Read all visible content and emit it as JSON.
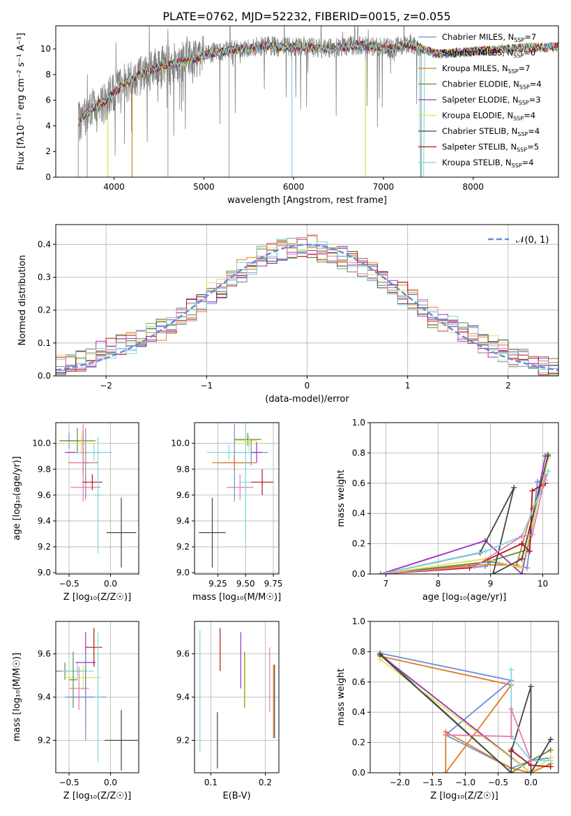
{
  "figure": {
    "title": "PLATE=0762, MJD=52232, FIBERID=0015, z=0.055"
  },
  "colors": {
    "data": "#808080",
    "Chabrier MILES": "#6a8fdc",
    "Salpeter MILES": "#8e8e8e",
    "Kroupa MILES": "#e07b20",
    "Chabrier ELODIE": "#5e8c3a",
    "Salpeter ELODIE": "#9b30b8",
    "Kroupa ELODIE": "#e0e35a",
    "Chabrier STELIB": "#444444",
    "Salpeter STELIB": "#b0141c",
    "Kroupa STELIB": "#7ed8e0",
    "Pink": "#e87ab0",
    "Gauss": "#5b8fd8"
  },
  "chart_data": [
    {
      "type": "line",
      "panel": "spectrum",
      "title": "PLATE=0762, MJD=52232, FIBERID=0015, z=0.055",
      "xlabel": "wavelength [Angstrom, rest frame]",
      "ylabel": "Flux [fλ10⁻¹⁷ erg cm⁻² s⁻¹ A⁻¹]",
      "xlim": [
        3350,
        8950
      ],
      "ylim": [
        0,
        11.8
      ],
      "xticks": [
        4000,
        5000,
        6000,
        7000,
        8000
      ],
      "yticks": [
        0,
        2,
        4,
        6,
        8,
        10
      ],
      "legend_position": "top-right",
      "legend": [
        {
          "name": "Chabrier MILES",
          "nssp": "7"
        },
        {
          "name": "Salpeter MILES",
          "nssp": "6"
        },
        {
          "name": "Kroupa MILES",
          "nssp": "7"
        },
        {
          "name": "Chabrier ELODIE",
          "nssp": "4"
        },
        {
          "name": "Salpeter ELODIE",
          "nssp": "3"
        },
        {
          "name": "Kroupa ELODIE",
          "nssp": "4"
        },
        {
          "name": "Chabrier STELIB",
          "nssp": "4"
        },
        {
          "name": "Salpeter STELIB",
          "nssp": "5"
        },
        {
          "name": "Kroupa STELIB",
          "nssp": "4"
        }
      ],
      "continuum": {
        "wavelength": [
          3600,
          3700,
          3800,
          3900,
          4000,
          4100,
          4200,
          4300,
          4500,
          4700,
          4900,
          5100,
          5300,
          5500,
          5700,
          5900,
          6100,
          6300,
          6500,
          6700,
          6900,
          7100,
          7200,
          7300,
          7400,
          7600,
          7800,
          8000,
          8200,
          8400,
          8600,
          8800,
          8950
        ],
        "flux": [
          4.2,
          5.0,
          5.6,
          5.9,
          6.6,
          7.2,
          7.7,
          8.0,
          8.6,
          8.9,
          9.3,
          9.7,
          9.9,
          10.1,
          10.2,
          10.1,
          10.2,
          10.0,
          10.1,
          10.3,
          10.2,
          10.0,
          10.3,
          10.4,
          10.1,
          9.6,
          9.7,
          9.8,
          9.9,
          10.0,
          10.1,
          10.1,
          10.2
        ]
      },
      "noise_end_wavelength": 7420
    },
    {
      "type": "bar",
      "panel": "residual-histogram",
      "xlabel": "(data-model)/error",
      "ylabel": "Normed distribution",
      "xlim": [
        -2.5,
        2.5
      ],
      "ylim": [
        0,
        0.46
      ],
      "xticks": [
        -2,
        -1,
        0,
        1,
        2
      ],
      "yticks": [
        0.0,
        0.1,
        0.2,
        0.3,
        0.4
      ],
      "bin_edges": [
        -2.5,
        -2.4,
        -2.3,
        -2.2,
        -2.1,
        -2.0,
        -1.9,
        -1.8,
        -1.7,
        -1.6,
        -1.5,
        -1.4,
        -1.3,
        -1.2,
        -1.1,
        -1.0,
        -0.9,
        -0.8,
        -0.7,
        -0.6,
        -0.5,
        -0.4,
        -0.3,
        -0.2,
        -0.1,
        0.0,
        0.1,
        0.2,
        0.3,
        0.4,
        0.5,
        0.6,
        0.7,
        0.8,
        0.9,
        1.0,
        1.1,
        1.2,
        1.3,
        1.4,
        1.5,
        1.6,
        1.7,
        1.8,
        1.9,
        2.0,
        2.1,
        2.2,
        2.3,
        2.4,
        2.5
      ],
      "base_density": [
        0.03,
        0.035,
        0.045,
        0.06,
        0.075,
        0.08,
        0.09,
        0.1,
        0.115,
        0.13,
        0.14,
        0.16,
        0.175,
        0.2,
        0.22,
        0.25,
        0.27,
        0.3,
        0.32,
        0.34,
        0.36,
        0.37,
        0.38,
        0.385,
        0.39,
        0.395,
        0.38,
        0.37,
        0.36,
        0.35,
        0.33,
        0.31,
        0.3,
        0.28,
        0.25,
        0.23,
        0.2,
        0.18,
        0.17,
        0.15,
        0.13,
        0.12,
        0.1,
        0.09,
        0.075,
        0.06,
        0.05,
        0.04,
        0.035,
        0.03
      ],
      "gaussian": {
        "label": "𝒩(0, 1)",
        "mean": 0,
        "sigma": 1
      }
    },
    {
      "type": "scatter",
      "panel": "age-vs-Z",
      "xlabel": "Z [log₁₀(Z/Z☉)]",
      "ylabel": "age  [log₁₀(age/yr)]",
      "xlim": [
        -0.66,
        0.34
      ],
      "ylim": [
        8.99,
        10.16
      ],
      "xticks": [
        -0.5,
        0.0
      ],
      "yticks": [
        9.0,
        9.2,
        9.4,
        9.6,
        9.8,
        10.0
      ],
      "points": [
        {
          "x": -0.5,
          "xerr": 0.1,
          "y": 10.02,
          "yerr": 0.06,
          "c": "Chabrier MILES"
        },
        {
          "x": -0.4,
          "xerr": 0.22,
          "y": 10.02,
          "yerr": 0.1,
          "c": "Chabrier ELODIE"
        },
        {
          "x": -0.35,
          "xerr": 0.25,
          "y": 10.0,
          "yerr": 0.08,
          "c": "Kroupa ELODIE"
        },
        {
          "x": -0.33,
          "xerr": 0.22,
          "y": 9.93,
          "yerr": 0.17,
          "c": "Salpeter ELODIE"
        },
        {
          "x": -0.2,
          "xerr": 0.22,
          "y": 9.93,
          "yerr": 0.07,
          "c": "Kroupa STELIB"
        },
        {
          "x": -0.33,
          "xerr": 0.18,
          "y": 9.85,
          "yerr": 0.07,
          "c": "Kroupa MILES"
        },
        {
          "x": -0.33,
          "xerr": 0.15,
          "y": 9.85,
          "yerr": 0.3,
          "c": "Pink"
        },
        {
          "x": -0.3,
          "xerr": 0.18,
          "y": 9.66,
          "yerr": 0.1,
          "c": "Pink"
        },
        {
          "x": -0.3,
          "xerr": 0.03,
          "y": 9.85,
          "yerr": 0.27,
          "c": "Salpeter MILES"
        },
        {
          "x": -0.22,
          "xerr": 0.12,
          "y": 9.7,
          "yerr": 0.06,
          "c": "Salpeter STELIB"
        },
        {
          "x": -0.15,
          "xerr": 0.05,
          "y": 9.6,
          "yerr": 0.45,
          "c": "Kroupa STELIB"
        },
        {
          "x": 0.13,
          "xerr": 0.18,
          "y": 9.31,
          "yerr": 0.27,
          "c": "Chabrier STELIB"
        }
      ]
    },
    {
      "type": "scatter",
      "panel": "age-vs-mass",
      "xlabel": "mass [log₁₀(M/M☉)]",
      "ylabel": "",
      "xlim": [
        9.04,
        9.8
      ],
      "ylim": [
        8.99,
        10.16
      ],
      "xticks": [
        9.25,
        9.5,
        9.75
      ],
      "yticks": [
        9.0,
        9.2,
        9.4,
        9.6,
        9.8,
        10.0
      ],
      "points": [
        {
          "x": 9.52,
          "xerr": 0.12,
          "y": 10.03,
          "yerr": 0.05,
          "c": "Chabrier ELODIE"
        },
        {
          "x": 9.5,
          "xerr": 0.1,
          "y": 10.02,
          "yerr": 0.06,
          "c": "Kroupa ELODIE"
        },
        {
          "x": 9.53,
          "xerr": 0.15,
          "y": 10.0,
          "yerr": 0.06,
          "c": "Kroupa ELODIE"
        },
        {
          "x": 9.55,
          "xerr": 0.15,
          "y": 9.93,
          "yerr": 0.1,
          "c": "Chabrier MILES"
        },
        {
          "x": 9.6,
          "xerr": 0.05,
          "y": 9.93,
          "yerr": 0.08,
          "c": "Salpeter ELODIE"
        },
        {
          "x": 9.35,
          "xerr": 0.2,
          "y": 9.93,
          "yerr": 0.06,
          "c": "Kroupa STELIB"
        },
        {
          "x": 9.4,
          "xerr": 0.15,
          "y": 9.85,
          "yerr": 0.3,
          "c": "Chabrier MILES"
        },
        {
          "x": 9.4,
          "xerr": 0.2,
          "y": 9.85,
          "yerr": 0.06,
          "c": "Kroupa MILES"
        },
        {
          "x": 9.45,
          "xerr": 0.12,
          "y": 9.66,
          "yerr": 0.1,
          "c": "Pink"
        },
        {
          "x": 9.65,
          "xerr": 0.1,
          "y": 9.7,
          "yerr": 0.1,
          "c": "Salpeter STELIB"
        },
        {
          "x": 9.5,
          "xerr": 0.05,
          "y": 9.7,
          "yerr": 0.45,
          "c": "Kroupa STELIB"
        },
        {
          "x": 9.2,
          "xerr": 0.12,
          "y": 9.31,
          "yerr": 0.27,
          "c": "Chabrier STELIB"
        }
      ]
    },
    {
      "type": "line",
      "panel": "mass-weight-vs-age",
      "xlabel": "age  [log₁₀(age/yr)]",
      "ylabel": "mass weight",
      "xlim": [
        6.7,
        10.3
      ],
      "ylim": [
        0,
        1.0
      ],
      "xticks": [
        7,
        8,
        9,
        10
      ],
      "yticks": [
        0.0,
        0.2,
        0.4,
        0.6,
        0.8,
        1.0
      ],
      "series": [
        {
          "c": "Chabrier MILES",
          "x": [
            6.9,
            8.9,
            9.0,
            9.7,
            9.9,
            10.05
          ],
          "y": [
            0.0,
            0.05,
            0.08,
            0.04,
            0.61,
            0.62
          ]
        },
        {
          "c": "Kroupa MILES",
          "x": [
            6.9,
            8.7,
            9.5,
            9.8,
            10.05
          ],
          "y": [
            0.0,
            0.06,
            0.06,
            0.43,
            0.6
          ]
        },
        {
          "c": "Chabrier ELODIE",
          "x": [
            6.9,
            8.95,
            9.7,
            10.1
          ],
          "y": [
            0.0,
            0.08,
            0.16,
            0.79
          ]
        },
        {
          "c": "Salpeter ELODIE",
          "x": [
            6.9,
            8.9,
            9.6,
            10.05
          ],
          "y": [
            0.0,
            0.22,
            0.0,
            0.78
          ]
        },
        {
          "c": "Kroupa ELODIE",
          "x": [
            6.9,
            8.9,
            9.6,
            10.1
          ],
          "y": [
            0.0,
            0.1,
            0.04,
            0.76
          ]
        },
        {
          "c": "Chabrier STELIB",
          "x": [
            6.9,
            8.8,
            9.45,
            9.05,
            9.6,
            10.1
          ],
          "y": [
            0.0,
            0.14,
            0.57,
            0.0,
            0.1,
            0.78
          ]
        },
        {
          "c": "Salpeter STELIB",
          "x": [
            6.9,
            8.6,
            9.6,
            9.75,
            9.8,
            10.05
          ],
          "y": [
            0.0,
            0.04,
            0.2,
            0.15,
            0.55,
            0.6
          ]
        },
        {
          "c": "Kroupa STELIB",
          "x": [
            6.9,
            8.9,
            9.6,
            10.05,
            10.1
          ],
          "y": [
            0.0,
            0.15,
            0.25,
            0.62,
            0.68
          ]
        },
        {
          "c": "Pink",
          "x": [
            6.9,
            8.7,
            9.6,
            9.8,
            10.05
          ],
          "y": [
            0.0,
            0.05,
            0.25,
            0.26,
            0.65
          ]
        }
      ]
    },
    {
      "type": "scatter",
      "panel": "mass-vs-Z",
      "xlabel": "Z [log₁₀(Z/Z☉)]",
      "ylabel": "mass [log₁₀(M/M☉)]",
      "xlim": [
        -0.66,
        0.34
      ],
      "ylim": [
        9.05,
        9.75
      ],
      "xticks": [
        -0.5,
        0.0
      ],
      "yticks": [
        9.2,
        9.4,
        9.6
      ],
      "points": [
        {
          "x": -0.55,
          "xerr": 0.25,
          "y": 9.52,
          "yerr": 0.04,
          "c": "Chabrier ELODIE"
        },
        {
          "x": -0.4,
          "xerr": 0.2,
          "y": 9.52,
          "yerr": 0.04,
          "c": "Kroupa STELIB"
        },
        {
          "x": -0.33,
          "xerr": 0.22,
          "y": 9.49,
          "yerr": 0.06,
          "c": "Kroupa ELODIE"
        },
        {
          "x": -0.3,
          "xerr": 0.12,
          "y": 9.56,
          "yerr": 0.14,
          "c": "Salpeter ELODIE"
        },
        {
          "x": -0.2,
          "xerr": 0.1,
          "y": 9.63,
          "yerr": 0.09,
          "c": "Salpeter STELIB"
        },
        {
          "x": -0.45,
          "xerr": 0.05,
          "y": 9.48,
          "yerr": 0.13,
          "c": "Chabrier ELODIE"
        },
        {
          "x": -0.38,
          "xerr": 0.12,
          "y": 9.44,
          "yerr": 0.1,
          "c": "Pink"
        },
        {
          "x": -0.3,
          "xerr": 0.2,
          "y": 9.4,
          "yerr": 0.15,
          "c": "Kroupa MILES"
        },
        {
          "x": -0.3,
          "xerr": 0.25,
          "y": 9.4,
          "yerr": 0.2,
          "c": "Chabrier MILES"
        },
        {
          "x": -0.15,
          "xerr": 0.05,
          "y": 9.4,
          "yerr": 0.3,
          "c": "Kroupa STELIB"
        },
        {
          "x": 0.13,
          "xerr": 0.2,
          "y": 9.2,
          "yerr": 0.14,
          "c": "Chabrier STELIB"
        }
      ]
    },
    {
      "type": "scatter",
      "panel": "mass-vs-EBV",
      "xlabel": "E(B-V)",
      "ylabel": "",
      "xlim": [
        0.07,
        0.225
      ],
      "ylim": [
        9.05,
        9.75
      ],
      "xticks": [
        0.1,
        0.2
      ],
      "yticks": [
        9.2,
        9.4,
        9.6
      ],
      "points": [
        {
          "x": 0.08,
          "xerr": 0.0,
          "y": 9.43,
          "yerr": 0.28,
          "c": "Kroupa STELIB"
        },
        {
          "x": 0.112,
          "xerr": 0.0,
          "y": 9.2,
          "yerr": 0.13,
          "c": "Chabrier STELIB"
        },
        {
          "x": 0.117,
          "xerr": 0.0,
          "y": 9.62,
          "yerr": 0.1,
          "c": "Salpeter STELIB"
        },
        {
          "x": 0.155,
          "xerr": 0.0,
          "y": 9.57,
          "yerr": 0.13,
          "c": "Salpeter ELODIE"
        },
        {
          "x": 0.162,
          "xerr": 0.0,
          "y": 9.48,
          "yerr": 0.13,
          "c": "Chabrier ELODIE"
        },
        {
          "x": 0.163,
          "xerr": 0.0,
          "y": 9.48,
          "yerr": 0.13,
          "c": "Kroupa ELODIE"
        },
        {
          "x": 0.208,
          "xerr": 0.0,
          "y": 9.48,
          "yerr": 0.15,
          "c": "Pink"
        },
        {
          "x": 0.215,
          "xerr": 0.0,
          "y": 9.38,
          "yerr": 0.17,
          "c": "Kroupa MILES"
        },
        {
          "x": 0.217,
          "xerr": 0.0,
          "y": 9.38,
          "yerr": 0.17,
          "c": "Chabrier STELIB"
        }
      ]
    },
    {
      "type": "line",
      "panel": "mass-weight-vs-Z",
      "xlabel": "Z [log₁₀(Z/Z☉)]",
      "ylabel": "mass weight",
      "xlim": [
        -2.45,
        0.42
      ],
      "ylim": [
        0,
        1.0
      ],
      "xticks": [
        -2.0,
        -1.5,
        -1.0,
        -0.5,
        0.0
      ],
      "yticks": [
        0.0,
        0.2,
        0.4,
        0.6,
        0.8,
        1.0
      ],
      "series": [
        {
          "c": "Chabrier MILES",
          "x": [
            -2.3,
            -0.3,
            -1.3,
            -0.3,
            0.0,
            0.3
          ],
          "y": [
            0.79,
            0.61,
            0.25,
            0.03,
            0.08,
            0.1
          ]
        },
        {
          "c": "Kroupa MILES",
          "x": [
            -2.3,
            -0.3,
            -1.3,
            -1.3,
            -0.3,
            0.0,
            0.3
          ],
          "y": [
            0.77,
            0.58,
            0.0,
            0.27,
            0.03,
            0.0,
            0.06
          ]
        },
        {
          "c": "Chabrier ELODIE",
          "x": [
            -2.3,
            -0.3,
            0.0,
            0.3
          ],
          "y": [
            0.79,
            0.0,
            0.08,
            0.15
          ]
        },
        {
          "c": "Salpeter ELODIE",
          "x": [
            -2.3,
            0.0,
            0.3
          ],
          "y": [
            0.78,
            0.0,
            0.22
          ]
        },
        {
          "c": "Kroupa ELODIE",
          "x": [
            -2.3,
            0.0,
            0.3
          ],
          "y": [
            0.75,
            0.0,
            0.1
          ]
        },
        {
          "c": "Chabrier STELIB",
          "x": [
            -2.3,
            -0.3,
            -0.3,
            0.0,
            0.0,
            0.3
          ],
          "y": [
            0.78,
            0.0,
            0.14,
            0.57,
            0.0,
            0.22
          ]
        },
        {
          "c": "Salpeter STELIB",
          "x": [
            -0.3,
            0.0,
            0.3
          ],
          "y": [
            0.15,
            0.05,
            0.04
          ]
        },
        {
          "c": "Kroupa STELIB",
          "x": [
            -0.3,
            -0.3,
            0.0,
            0.3
          ],
          "y": [
            0.68,
            0.24,
            0.08,
            0.08
          ]
        },
        {
          "c": "Pink",
          "x": [
            -1.3,
            -0.3,
            -0.3,
            0.0
          ],
          "y": [
            0.25,
            0.24,
            0.42,
            0.08
          ]
        }
      ]
    }
  ]
}
